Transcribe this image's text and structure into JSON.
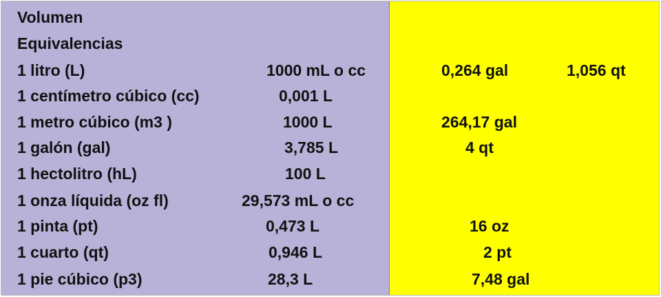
{
  "title": "Volumen",
  "subtitle": "Equivalencias",
  "rows": [
    {
      "unit": "1 litro (L)",
      "eq1": "1000 mL o cc",
      "eq2": "0,264 gal",
      "eq3": "1,056 qt"
    },
    {
      "unit": "1 centímetro cúbico (cc)",
      "eq1": "0,001 L",
      "eq2": "",
      "eq3": ""
    },
    {
      "unit": "1 metro cúbico (m3 )",
      "eq1": "1000 L",
      "eq2": "264,17 gal",
      "eq3": ""
    },
    {
      "unit": "1 galón (gal)",
      "eq1": "3,785 L",
      "eq2": "4 qt",
      "eq3": ""
    },
    {
      "unit": "1 hectolitro (hL)",
      "eq1": "100 L",
      "eq2": "",
      "eq3": ""
    },
    {
      "unit": "1 onza líquida (oz fl)",
      "eq1": "29,573 mL o cc",
      "eq2": "",
      "eq3": ""
    },
    {
      "unit": "1 pinta (pt)",
      "eq1": "0,473 L",
      "eq2": "16 oz",
      "eq3": ""
    },
    {
      "unit": "1 cuarto (qt)",
      "eq1": "0,946 L",
      "eq2": "2 pt",
      "eq3": ""
    },
    {
      "unit": "1 pie cúbico (p3)",
      "eq1": "28,3 L",
      "eq2": "7,48 gal",
      "eq3": ""
    }
  ],
  "colors": {
    "left_panel": "#b8b1d8",
    "right_panel": "#ffff00",
    "text": "#111111"
  }
}
